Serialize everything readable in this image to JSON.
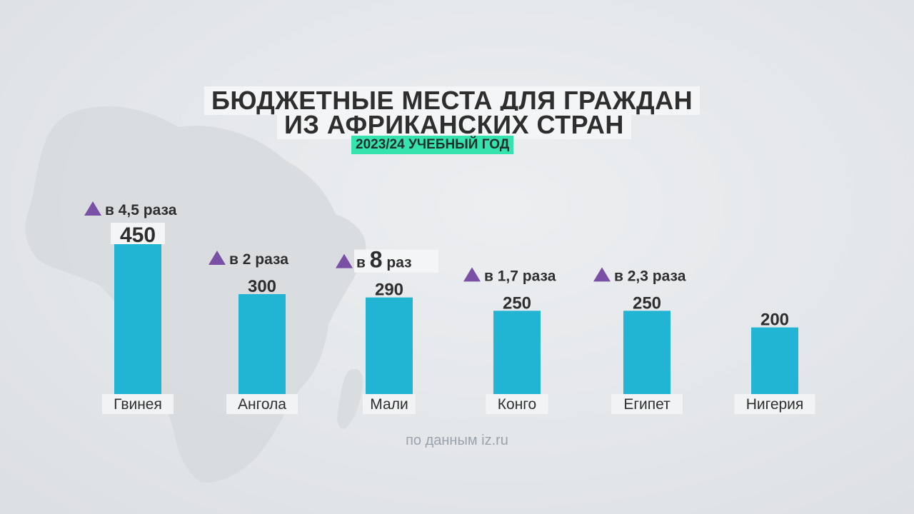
{
  "title_line1": "БЮДЖЕТНЫЕ МЕСТА ДЛЯ ГРАЖДАН",
  "title_line2": "ИЗ АФРИКАНСКИХ СТРАН",
  "subtitle": "2023/24 УЧЕБНЫЙ ГОД",
  "source": "по данным iz.ru",
  "colors": {
    "bar": "#22b5d3",
    "triangle": "#7a4fa6",
    "subtitle_bg": "#34e3ad",
    "text": "#2e2e2e"
  },
  "chart_data": {
    "type": "bar",
    "categories": [
      "Гвинея",
      "Ангола",
      "Мали",
      "Конго",
      "Египет",
      "Нигерия"
    ],
    "values": [
      450,
      300,
      290,
      250,
      250,
      200
    ],
    "value_labels": [
      "450",
      "300",
      "290",
      "250",
      "250",
      "200"
    ],
    "growth": [
      {
        "prefix": "в",
        "number": "4,5",
        "suffix": "раза",
        "number_emphasis": false
      },
      {
        "prefix": "в",
        "number": "2",
        "suffix": "раза",
        "number_emphasis": false
      },
      {
        "prefix": "в",
        "number": "8",
        "suffix": "раз",
        "number_emphasis": true
      },
      {
        "prefix": "в",
        "number": "1,7",
        "suffix": "раза",
        "number_emphasis": false
      },
      {
        "prefix": "в",
        "number": "2,3",
        "suffix": "раза",
        "number_emphasis": false
      },
      null
    ],
    "growth_icon": "triangle-up-icon",
    "title": "БЮДЖЕТНЫЕ МЕСТА ДЛЯ ГРАЖДАН ИЗ АФРИКАНСКИХ СТРАН",
    "subtitle": "2023/24 УЧЕБНЫЙ ГОД",
    "xlabel": "",
    "ylabel": "",
    "ylim": [
      0,
      450
    ],
    "grid": false,
    "legend": "none"
  }
}
